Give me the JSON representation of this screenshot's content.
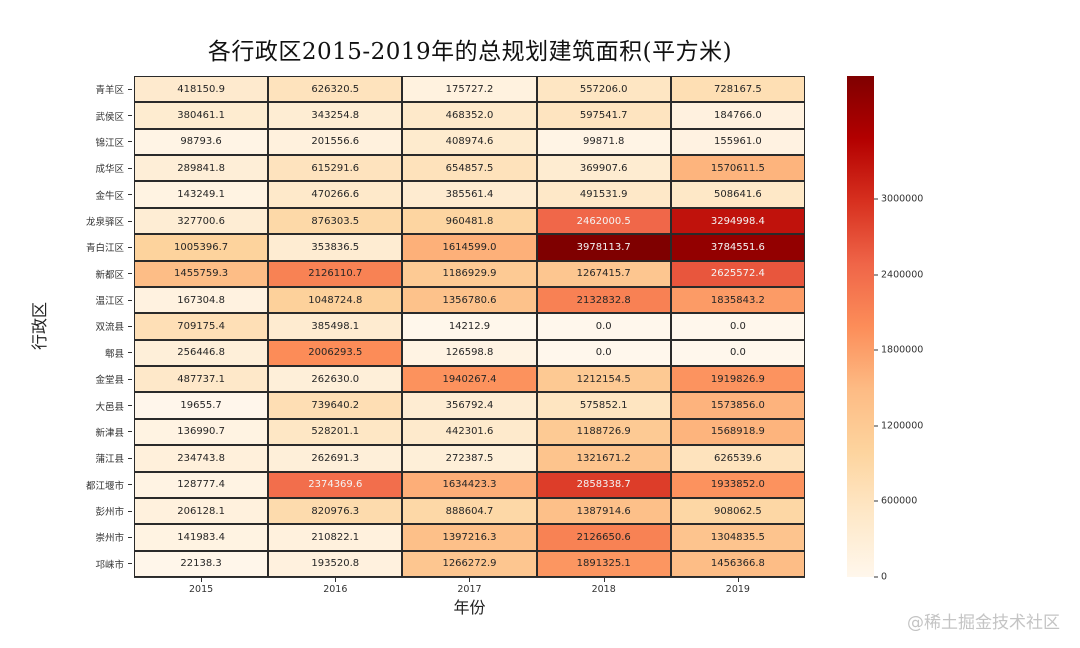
{
  "chart_data": {
    "type": "heatmap",
    "title": "各行政区2015-2019年的总规划建筑面积(平方米)",
    "xlabel": "年份",
    "ylabel": "行政区",
    "x": [
      "2015",
      "2016",
      "2017",
      "2018",
      "2019"
    ],
    "y": [
      "青羊区",
      "武侯区",
      "锦江区",
      "成华区",
      "金牛区",
      "龙泉驿区",
      "青白江区",
      "新都区",
      "温江区",
      "双流县",
      "郫县",
      "金堂县",
      "大邑县",
      "新津县",
      "蒲江县",
      "都江堰市",
      "彭州市",
      "崇州市",
      "邛崃市"
    ],
    "values": [
      [
        418150.9,
        626320.5,
        175727.2,
        557206.0,
        728167.5
      ],
      [
        380461.1,
        343254.8,
        468352.0,
        597541.7,
        184766.0
      ],
      [
        98793.6,
        201556.6,
        408974.6,
        99871.8,
        155961.0
      ],
      [
        289841.8,
        615291.6,
        654857.5,
        369907.6,
        1570611.5
      ],
      [
        143249.1,
        470266.6,
        385561.4,
        491531.9,
        508641.6
      ],
      [
        327700.6,
        876303.5,
        960481.8,
        2462000.5,
        3294998.4
      ],
      [
        1005396.7,
        353836.5,
        1614599.0,
        3978113.7,
        3784551.6
      ],
      [
        1455759.3,
        2126110.7,
        1186929.9,
        1267415.7,
        2625572.4
      ],
      [
        167304.8,
        1048724.8,
        1356780.6,
        2132832.8,
        1835843.2
      ],
      [
        709175.4,
        385498.1,
        14212.9,
        0.0,
        0.0
      ],
      [
        256446.8,
        2006293.5,
        126598.8,
        0.0,
        0.0
      ],
      [
        487737.1,
        262630.0,
        1940267.4,
        1212154.5,
        1919826.9
      ],
      [
        19655.7,
        739640.2,
        356792.4,
        575852.1,
        1573856.0
      ],
      [
        136990.7,
        528201.1,
        442301.6,
        1188726.9,
        1568918.9
      ],
      [
        234743.8,
        262691.3,
        272387.5,
        1321671.2,
        626539.6
      ],
      [
        128777.4,
        2374369.6,
        1634423.3,
        2858338.7,
        1933852.0
      ],
      [
        206128.1,
        820976.3,
        888604.7,
        1387914.6,
        908062.5
      ],
      [
        141983.4,
        210822.1,
        1397216.3,
        2126650.6,
        1304835.5
      ],
      [
        22138.3,
        193520.8,
        1266272.9,
        1891325.1,
        1456366.8
      ]
    ],
    "colormap": "OrRd",
    "colorbar": {
      "vmin": 0,
      "vmax": 3978113.7,
      "ticks": [
        0,
        600000,
        1200000,
        1800000,
        2400000,
        3000000
      ],
      "tick_labels": [
        "0",
        "600000",
        "1200000",
        "1800000",
        "2400000",
        "3000000"
      ]
    },
    "annotations": true,
    "annotation_format": "%.1f",
    "grid": false,
    "legend_position": "right"
  },
  "colors": {
    "scale": [
      "#fff7ec",
      "#fee8c8",
      "#fdd49e",
      "#fdbb84",
      "#fc8d59",
      "#ef6548",
      "#d7301f",
      "#b30000",
      "#7f0000"
    ]
  },
  "watermark": {
    "text": "@稀土掘金技术社区"
  }
}
